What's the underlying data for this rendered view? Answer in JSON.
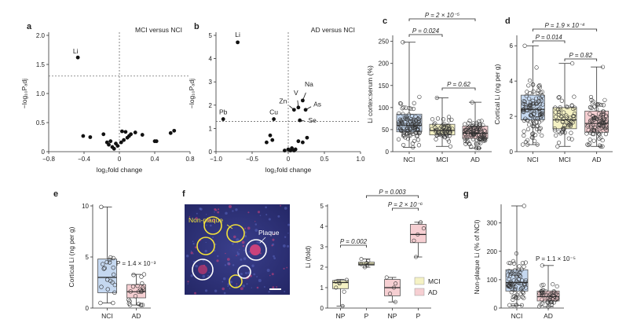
{
  "chart_data": [
    {
      "id": "a",
      "type": "scatter",
      "panel_label": "a",
      "title": "MCI versus NCI",
      "xlabel": "log₂fold change",
      "ylabel": "−log₁₀Pₐdj",
      "xlim": [
        -0.8,
        0.8
      ],
      "ylim": [
        0,
        2
      ],
      "xticks": [
        -0.8,
        -0.4,
        0,
        0.4,
        0.8
      ],
      "xtick_labels": [
        "−0.8",
        "−0.4",
        "0",
        "0.4",
        "0.8"
      ],
      "yticks": [
        0,
        0.5,
        1.0,
        1.5,
        2.0
      ],
      "ytick_labels": [
        "0",
        "0.5",
        "1.0",
        "1.5",
        "2.0"
      ],
      "threshold_y": 1.3,
      "points": [
        {
          "x": -0.47,
          "y": 1.62,
          "label": "Li"
        },
        {
          "x": -0.41,
          "y": 0.27
        },
        {
          "x": -0.33,
          "y": 0.25
        },
        {
          "x": -0.18,
          "y": 0.3
        },
        {
          "x": -0.14,
          "y": 0.16
        },
        {
          "x": -0.12,
          "y": 0.12
        },
        {
          "x": -0.1,
          "y": 0.18
        },
        {
          "x": -0.08,
          "y": 0.08
        },
        {
          "x": -0.06,
          "y": 0.05
        },
        {
          "x": -0.04,
          "y": 0.14
        },
        {
          "x": -0.02,
          "y": 0.1
        },
        {
          "x": 0.02,
          "y": 0.16
        },
        {
          "x": 0.03,
          "y": 0.35
        },
        {
          "x": 0.05,
          "y": 0.2
        },
        {
          "x": 0.07,
          "y": 0.34
        },
        {
          "x": 0.09,
          "y": 0.24
        },
        {
          "x": 0.11,
          "y": 0.27
        },
        {
          "x": 0.13,
          "y": 0.3
        },
        {
          "x": 0.18,
          "y": 0.33
        },
        {
          "x": 0.26,
          "y": 0.29
        },
        {
          "x": 0.4,
          "y": 0.18
        },
        {
          "x": 0.42,
          "y": 0.18
        },
        {
          "x": 0.58,
          "y": 0.32
        },
        {
          "x": 0.62,
          "y": 0.36
        }
      ]
    },
    {
      "id": "b",
      "type": "scatter",
      "panel_label": "b",
      "title": "AD versus NCI",
      "xlabel": "log₂fold change",
      "ylabel": "−log₁₀Pₐdj",
      "xlim": [
        -1.0,
        1.0
      ],
      "ylim": [
        0,
        5
      ],
      "xticks": [
        -1.0,
        -0.5,
        0,
        0.5,
        1.0
      ],
      "xtick_labels": [
        "−1.0",
        "−0.5",
        "0",
        "0.5",
        "1.0"
      ],
      "yticks": [
        0,
        1,
        2,
        3,
        4,
        5
      ],
      "ytick_labels": [
        "0",
        "1",
        "2",
        "3",
        "4",
        "5"
      ],
      "threshold_y": 1.3,
      "points": [
        {
          "x": -0.7,
          "y": 4.7,
          "label": "Li"
        },
        {
          "x": -0.9,
          "y": 1.4,
          "label": "Pb"
        },
        {
          "x": -0.2,
          "y": 1.4,
          "label": "Cu"
        },
        {
          "x": 0.08,
          "y": 1.8,
          "label": "Zn"
        },
        {
          "x": 0.14,
          "y": 1.9,
          "label": "V"
        },
        {
          "x": 0.2,
          "y": 2.2,
          "label": "Na"
        },
        {
          "x": 0.24,
          "y": 1.8,
          "label": "As"
        },
        {
          "x": 0.16,
          "y": 1.35,
          "label": "Se"
        },
        {
          "x": -0.3,
          "y": 0.4
        },
        {
          "x": -0.25,
          "y": 0.7
        },
        {
          "x": -0.22,
          "y": 0.5
        },
        {
          "x": -0.05,
          "y": 0.05
        },
        {
          "x": 0.0,
          "y": 0.1
        },
        {
          "x": 0.03,
          "y": 0.05
        },
        {
          "x": 0.05,
          "y": 0.15
        },
        {
          "x": 0.08,
          "y": 0.05
        },
        {
          "x": 0.1,
          "y": 0.1
        },
        {
          "x": 0.14,
          "y": 0.45
        },
        {
          "x": 0.2,
          "y": 0.4
        },
        {
          "x": 0.26,
          "y": 0.6
        }
      ],
      "label_offsets_note": ""
    },
    {
      "id": "c",
      "type": "box",
      "panel_label": "c",
      "ylabel": "Li cortex:serum (%)",
      "categories": [
        "NCI",
        "MCI",
        "AD"
      ],
      "ylim": [
        0,
        260
      ],
      "yticks": [
        0,
        50,
        100,
        150,
        200,
        250
      ],
      "ytick_labels": [
        "0",
        "50",
        "100",
        "150",
        "200",
        "250"
      ],
      "series": [
        {
          "name": "NCI",
          "color": "#c5d8f0",
          "stats": {
            "min": 10,
            "q1": 45,
            "median": 60,
            "q3": 85,
            "max": 248
          },
          "n": 110
        },
        {
          "name": "MCI",
          "color": "#f5f2c4",
          "stats": {
            "min": 12,
            "q1": 38,
            "median": 48,
            "q3": 62,
            "max": 122
          },
          "n": 60
        },
        {
          "name": "AD",
          "color": "#f6cfd2",
          "stats": {
            "min": 8,
            "q1": 30,
            "median": 42,
            "q3": 58,
            "max": 112
          },
          "n": 100
        }
      ],
      "comparisons": [
        {
          "a": 0,
          "b": 1,
          "label": "P = 0.024"
        },
        {
          "a": 0,
          "b": 2,
          "label": "P = 2 × 10⁻⁵"
        },
        {
          "a": 1,
          "b": 2,
          "label": "P = 0.62"
        }
      ]
    },
    {
      "id": "d",
      "type": "box",
      "panel_label": "d",
      "ylabel": "Cortical Li (ng per g)",
      "categories": [
        "NCI",
        "MCI",
        "AD"
      ],
      "ylim": [
        0,
        6.5
      ],
      "yticks": [
        0,
        2,
        4,
        6
      ],
      "ytick_labels": [
        "0",
        "2",
        "4",
        "6"
      ],
      "series": [
        {
          "name": "NCI",
          "color": "#c5d8f0",
          "stats": {
            "min": 0.4,
            "q1": 1.8,
            "median": 2.4,
            "q3": 3.2,
            "max": 6.0
          },
          "n": 110
        },
        {
          "name": "MCI",
          "color": "#f5f2c4",
          "stats": {
            "min": 0.3,
            "q1": 1.3,
            "median": 1.8,
            "q3": 2.5,
            "max": 5.0
          },
          "n": 60
        },
        {
          "name": "AD",
          "color": "#f6cfd2",
          "stats": {
            "min": 0.3,
            "q1": 1.1,
            "median": 1.6,
            "q3": 2.3,
            "max": 4.8
          },
          "n": 100
        }
      ],
      "comparisons": [
        {
          "a": 0,
          "b": 1,
          "label": "P = 0.014"
        },
        {
          "a": 0,
          "b": 2,
          "label": "P = 1.9 × 10⁻⁴"
        },
        {
          "a": 1,
          "b": 2,
          "label": "P = 0.82"
        }
      ]
    },
    {
      "id": "e",
      "type": "box",
      "panel_label": "e",
      "ylabel": "Cortical Li (ng per g)",
      "categories": [
        "NCI",
        "AD"
      ],
      "ylim": [
        0,
        10
      ],
      "yticks": [
        0,
        5,
        10
      ],
      "ytick_labels": [
        "0",
        "5",
        "10"
      ],
      "series": [
        {
          "name": "NCI",
          "color": "#c5d8f0",
          "stats": {
            "min": 0.5,
            "q1": 1.5,
            "median": 3.0,
            "q3": 4.8,
            "max": 9.9
          },
          "n": 20
        },
        {
          "name": "AD",
          "color": "#f6cfd2",
          "stats": {
            "min": 0.3,
            "q1": 1.0,
            "median": 1.6,
            "q3": 2.3,
            "max": 3.3
          },
          "n": 22
        }
      ],
      "comparisons": [],
      "annotation": "P = 1.4 × 10⁻³"
    },
    {
      "id": "f",
      "type": "box",
      "panel_label": "f",
      "ylabel": "Li (fold)",
      "categories": [
        "NP",
        "P",
        "NP",
        "P"
      ],
      "ylim": [
        0,
        5
      ],
      "yticks": [
        0,
        1,
        2,
        3,
        4,
        5
      ],
      "ytick_labels": [
        "0",
        "1",
        "2",
        "3",
        "4",
        "5"
      ],
      "series": [
        {
          "name": "MCI NP",
          "color": "#f5f2c4",
          "stats": {
            "min": 0.1,
            "q1": 0.95,
            "median": 1.25,
            "q3": 1.35,
            "max": 1.4
          },
          "points": [
            0.1,
            0.8,
            1.0,
            1.2,
            1.25,
            1.3,
            1.38
          ]
        },
        {
          "name": "MCI P",
          "color": "#f5f2c4",
          "stats": {
            "min": 2.0,
            "q1": 2.1,
            "median": 2.15,
            "q3": 2.25,
            "max": 2.4
          },
          "points": [
            2.0,
            2.1,
            2.15,
            2.2,
            2.3,
            2.4
          ]
        },
        {
          "name": "AD NP",
          "color": "#f6cfd2",
          "stats": {
            "min": 0.3,
            "q1": 0.6,
            "median": 1.0,
            "q3": 1.4,
            "max": 1.5
          },
          "points": [
            0.3,
            0.7,
            1.0,
            1.2,
            1.5
          ]
        },
        {
          "name": "AD P",
          "color": "#f6cfd2",
          "stats": {
            "min": 2.5,
            "q1": 3.2,
            "median": 3.6,
            "q3": 4.1,
            "max": 4.2
          },
          "points": [
            2.5,
            3.3,
            3.6,
            3.9,
            4.2
          ]
        }
      ],
      "comparisons": [
        {
          "a": 0,
          "b": 1,
          "label": "P = 0.002"
        },
        {
          "a": 1,
          "b": 3,
          "label": "P = 0.003"
        },
        {
          "a": 2,
          "b": 3,
          "label": "P = 2 × 10⁻⁶"
        }
      ],
      "legend": [
        {
          "name": "MCI",
          "color": "#f5f2c4"
        },
        {
          "name": "AD",
          "color": "#f6cfd2"
        }
      ]
    },
    {
      "id": "g",
      "type": "box",
      "panel_label": "g",
      "ylabel": "Non-plaque Li (% of NCI)",
      "categories": [
        "NCI",
        "AD"
      ],
      "ylim": [
        0,
        360
      ],
      "yticks": [
        0,
        100,
        200,
        300
      ],
      "ytick_labels": [
        "0",
        "100",
        "200",
        "300"
      ],
      "series": [
        {
          "name": "NCI",
          "color": "#c5d8f0",
          "stats": {
            "min": 10,
            "q1": 60,
            "median": 90,
            "q3": 135,
            "max": 360
          },
          "n": 80
        },
        {
          "name": "AD",
          "color": "#f6cfd2",
          "stats": {
            "min": 5,
            "q1": 25,
            "median": 40,
            "q3": 60,
            "max": 150
          },
          "n": 50
        }
      ],
      "comparisons": [],
      "annotation": "P = 1.1 × 10⁻⁵"
    }
  ],
  "micrograph": {
    "panel_label": "f",
    "label_nonplaque": "Non-plaque",
    "label_plaque": "Plaque"
  }
}
